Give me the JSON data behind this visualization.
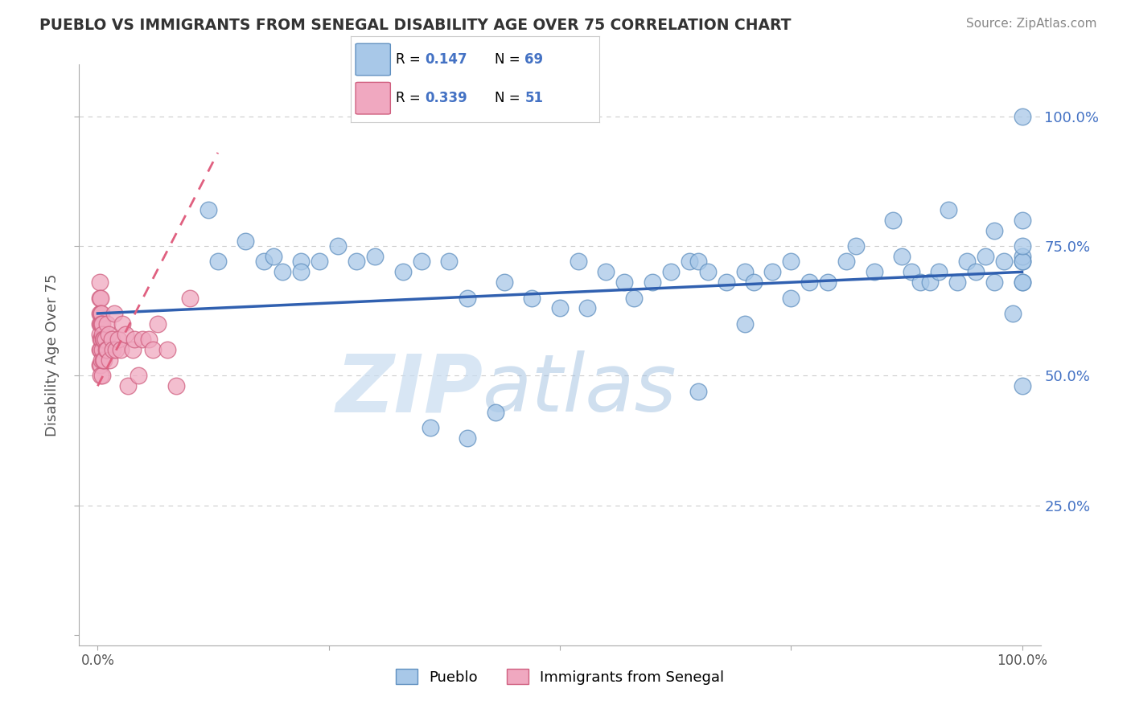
{
  "title": "PUEBLO VS IMMIGRANTS FROM SENEGAL DISABILITY AGE OVER 75 CORRELATION CHART",
  "source_text": "Source: ZipAtlas.com",
  "ylabel": "Disability Age Over 75",
  "xlim": [
    -0.02,
    1.02
  ],
  "ylim": [
    -0.02,
    1.1
  ],
  "yticks": [
    0.0,
    0.25,
    0.5,
    0.75,
    1.0
  ],
  "ytick_labels": [
    "",
    "25.0%",
    "50.0%",
    "75.0%",
    "100.0%"
  ],
  "xticks": [
    0.0,
    1.0
  ],
  "xtick_labels": [
    "0.0%",
    "100.0%"
  ],
  "background_color": "#ffffff",
  "grid_color": "#cccccc",
  "blue_scatter_face": "#A8C8E8",
  "blue_scatter_edge": "#6090C0",
  "pink_scatter_face": "#F0A8C0",
  "pink_scatter_edge": "#D06080",
  "blue_line_color": "#3060B0",
  "pink_line_color": "#E06080",
  "watermark_zip": "ZIP",
  "watermark_atlas": "atlas",
  "pueblo_label": "Pueblo",
  "senegal_label": "Immigrants from Senegal",
  "legend_r_blue": "0.147",
  "legend_n_blue": "69",
  "legend_r_pink": "0.339",
  "legend_n_pink": "51",
  "blue_trend_x0": 0.0,
  "blue_trend_y0": 0.62,
  "blue_trend_x1": 1.0,
  "blue_trend_y1": 0.7,
  "pink_trend_x0": 0.0,
  "pink_trend_y0": 0.48,
  "pink_trend_x1": 0.13,
  "pink_trend_y1": 0.93,
  "pueblo_x": [
    0.12,
    0.13,
    0.16,
    0.18,
    0.19,
    0.2,
    0.22,
    0.22,
    0.24,
    0.26,
    0.28,
    0.3,
    0.33,
    0.35,
    0.38,
    0.4,
    0.44,
    0.47,
    0.5,
    0.52,
    0.55,
    0.57,
    0.6,
    0.62,
    0.64,
    0.65,
    0.66,
    0.68,
    0.7,
    0.71,
    0.73,
    0.75,
    0.77,
    0.79,
    0.81,
    0.82,
    0.84,
    0.86,
    0.87,
    0.88,
    0.89,
    0.9,
    0.91,
    0.92,
    0.93,
    0.94,
    0.95,
    0.96,
    0.97,
    0.97,
    0.98,
    0.99,
    1.0,
    1.0,
    1.0,
    1.0,
    1.0,
    1.0,
    1.0,
    1.0,
    1.0,
    0.43,
    0.36,
    0.4,
    0.53,
    0.58,
    0.65,
    0.7,
    0.75
  ],
  "pueblo_y": [
    0.82,
    0.72,
    0.76,
    0.72,
    0.73,
    0.7,
    0.72,
    0.7,
    0.72,
    0.75,
    0.72,
    0.73,
    0.7,
    0.72,
    0.72,
    0.65,
    0.68,
    0.65,
    0.63,
    0.72,
    0.7,
    0.68,
    0.68,
    0.7,
    0.72,
    0.72,
    0.7,
    0.68,
    0.7,
    0.68,
    0.7,
    0.72,
    0.68,
    0.68,
    0.72,
    0.75,
    0.7,
    0.8,
    0.73,
    0.7,
    0.68,
    0.68,
    0.7,
    0.82,
    0.68,
    0.72,
    0.7,
    0.73,
    0.78,
    0.68,
    0.72,
    0.62,
    0.72,
    0.73,
    0.8,
    0.68,
    0.72,
    0.75,
    0.68,
    1.0,
    0.48,
    0.43,
    0.4,
    0.38,
    0.63,
    0.65,
    0.47,
    0.6,
    0.65
  ],
  "senegal_x": [
    0.002,
    0.002,
    0.002,
    0.002,
    0.002,
    0.002,
    0.002,
    0.003,
    0.003,
    0.003,
    0.003,
    0.003,
    0.003,
    0.003,
    0.004,
    0.004,
    0.004,
    0.004,
    0.005,
    0.005,
    0.005,
    0.005,
    0.006,
    0.006,
    0.007,
    0.007,
    0.008,
    0.009,
    0.01,
    0.01,
    0.012,
    0.013,
    0.015,
    0.016,
    0.018,
    0.02,
    0.022,
    0.025,
    0.027,
    0.03,
    0.033,
    0.038,
    0.04,
    0.044,
    0.048,
    0.055,
    0.06,
    0.065,
    0.075,
    0.085,
    0.1
  ],
  "senegal_y": [
    0.68,
    0.65,
    0.62,
    0.6,
    0.58,
    0.55,
    0.52,
    0.65,
    0.62,
    0.6,
    0.57,
    0.55,
    0.52,
    0.5,
    0.62,
    0.6,
    0.57,
    0.53,
    0.6,
    0.58,
    0.55,
    0.5,
    0.57,
    0.53,
    0.57,
    0.53,
    0.57,
    0.55,
    0.6,
    0.55,
    0.58,
    0.53,
    0.57,
    0.55,
    0.62,
    0.55,
    0.57,
    0.55,
    0.6,
    0.58,
    0.48,
    0.55,
    0.57,
    0.5,
    0.57,
    0.57,
    0.55,
    0.6,
    0.55,
    0.48,
    0.65
  ]
}
